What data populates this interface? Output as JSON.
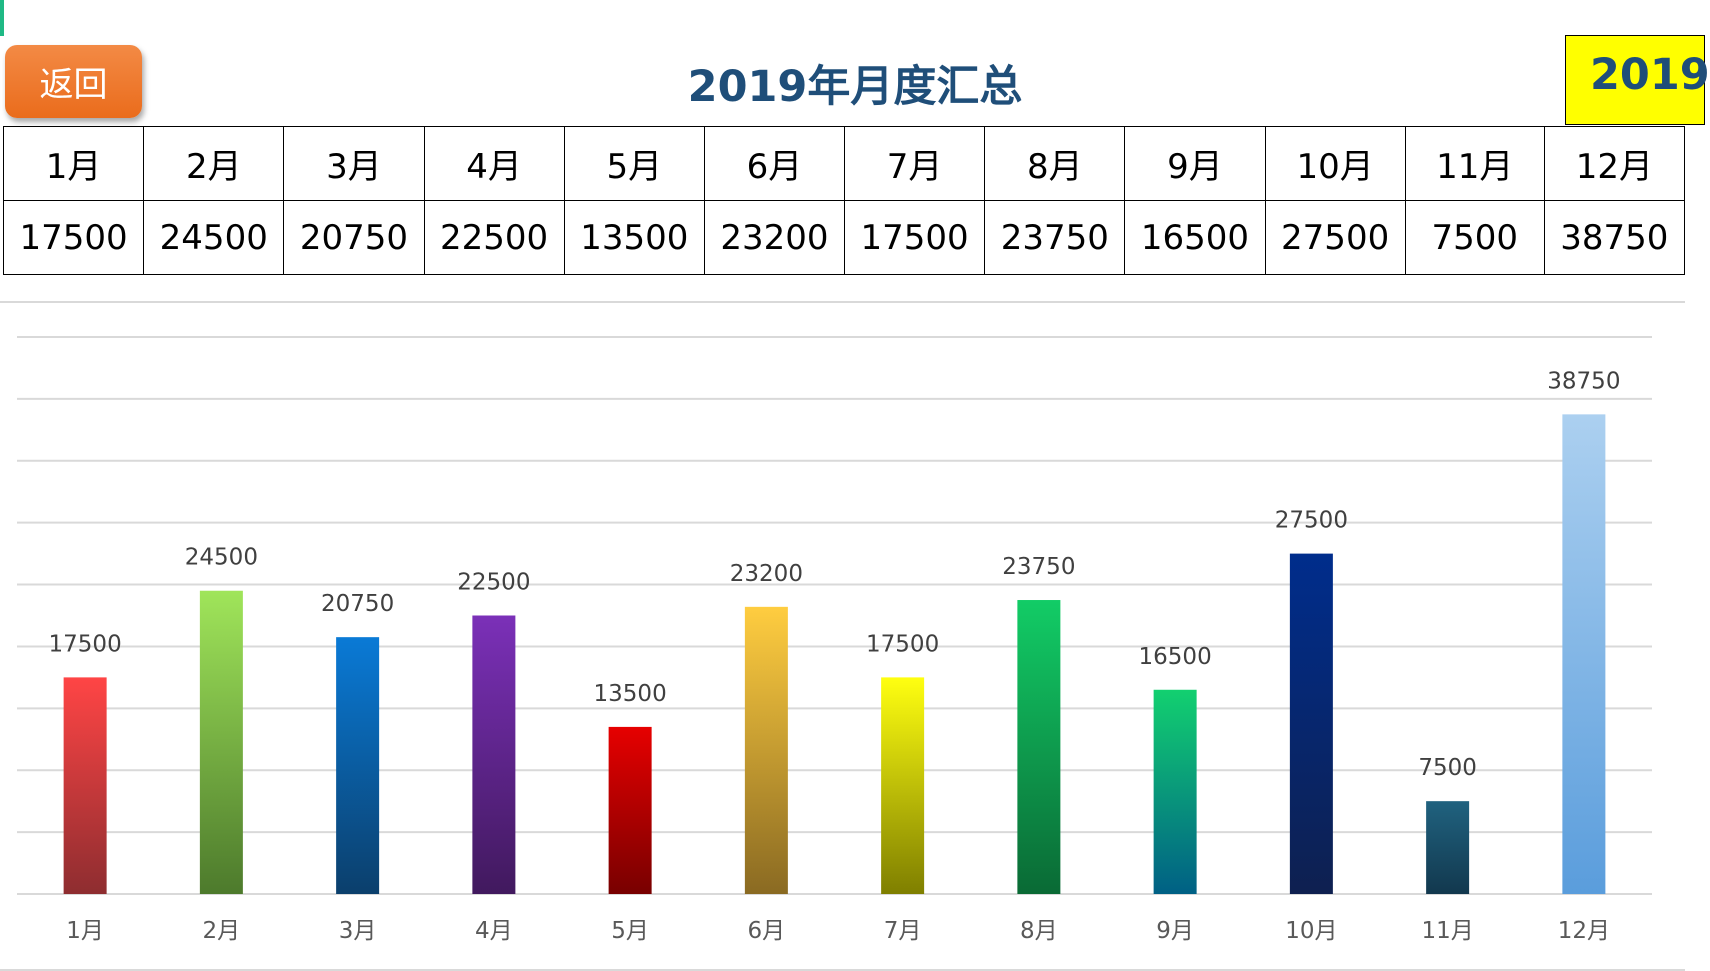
{
  "header": {
    "back_label": "返回",
    "title": "2019年月度汇总",
    "year_box": "2019"
  },
  "table": {
    "months": [
      "1月",
      "2月",
      "3月",
      "4月",
      "5月",
      "6月",
      "7月",
      "8月",
      "9月",
      "10月",
      "11月",
      "12月"
    ],
    "values": [
      "17500",
      "24500",
      "20750",
      "22500",
      "13500",
      "23200",
      "17500",
      "23750",
      "16500",
      "27500",
      "7500",
      "38750"
    ]
  },
  "chart_data": {
    "type": "bar",
    "categories": [
      "1月",
      "2月",
      "3月",
      "4月",
      "5月",
      "6月",
      "7月",
      "8月",
      "9月",
      "10月",
      "11月",
      "12月"
    ],
    "values": [
      17500,
      24500,
      20750,
      22500,
      13500,
      23200,
      17500,
      23750,
      16500,
      27500,
      7500,
      38750
    ],
    "ylim": [
      0,
      45000
    ],
    "grid": true,
    "data_labels": true,
    "colors": [
      [
        "#ff4545",
        "#8e2d30"
      ],
      [
        "#a0e55a",
        "#4d7a2c"
      ],
      [
        "#0a7ad6",
        "#0b3f6c"
      ],
      [
        "#7b30b8",
        "#41195e"
      ],
      [
        "#e60000",
        "#780000"
      ],
      [
        "#ffcd40",
        "#8a6a22"
      ],
      [
        "#ffff10",
        "#7f7f00"
      ],
      [
        "#12cc66",
        "#0a6a35"
      ],
      [
        "#12d070",
        "#006085"
      ],
      [
        "#002d8c",
        "#0e2050"
      ],
      [
        "#20627f",
        "#12384e"
      ],
      [
        "#acd0f0",
        "#5a9ddc"
      ]
    ]
  }
}
